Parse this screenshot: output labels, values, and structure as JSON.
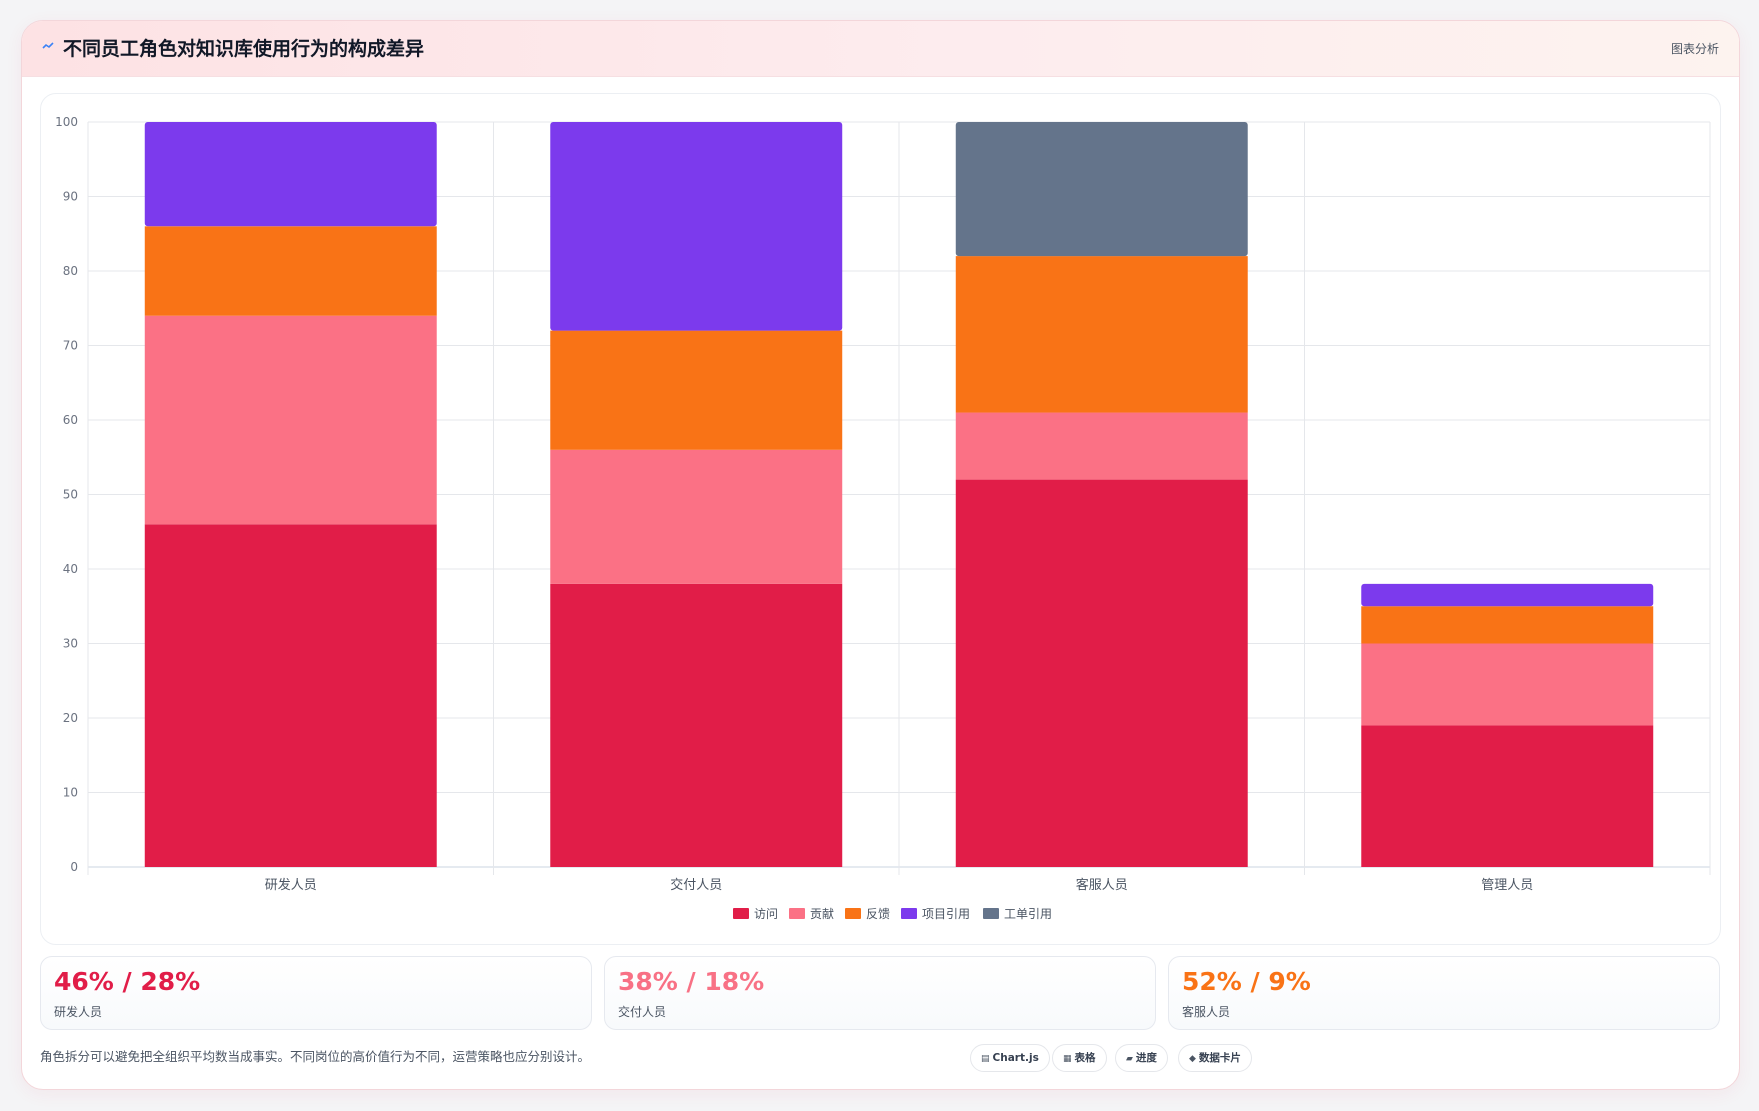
{
  "header": {
    "icon": "sparkline-icon",
    "title": "不同员工角色对知识库使用行为的构成差异",
    "tag": "图表分析"
  },
  "chart_data": {
    "type": "bar",
    "stacked": true,
    "categories": [
      "研发人员",
      "交付人员",
      "客服人员",
      "管理人员"
    ],
    "series": [
      {
        "name": "访问",
        "color": "#e11d48",
        "values": [
          46,
          38,
          52,
          19
        ]
      },
      {
        "name": "贡献",
        "color": "#fb7185",
        "values": [
          28,
          18,
          9,
          11
        ]
      },
      {
        "name": "反馈",
        "color": "#f97316",
        "values": [
          12,
          16,
          21,
          5
        ]
      },
      {
        "name": "项目引用",
        "color": "#7c3aed",
        "values": [
          14,
          28,
          0,
          3
        ]
      },
      {
        "name": "工单引用",
        "color": "#64748b",
        "values": [
          0,
          0,
          18,
          0
        ]
      }
    ],
    "ylim": [
      0,
      100
    ],
    "yticks": [
      0,
      10,
      20,
      30,
      40,
      50,
      60,
      70,
      80,
      90,
      100
    ],
    "grid": true,
    "legend": "bottom"
  },
  "stats": [
    {
      "value": "46% / 28%",
      "label": "研发人员",
      "color": "#e11d48"
    },
    {
      "value": "38% / 18%",
      "label": "交付人员",
      "color": "#f87185"
    },
    {
      "value": "52% / 9%",
      "label": "客服人员",
      "color": "#f97316"
    }
  ],
  "footer": {
    "note": "角色拆分可以避免把全组织平均数当成事实。不同岗位的高价值行为不同，运营策略也应分别设计。",
    "chips": [
      {
        "icon": "chart-icon",
        "label": "Chart.js"
      },
      {
        "icon": "table-icon",
        "label": "表格"
      },
      {
        "icon": "progress-icon",
        "label": "进度"
      },
      {
        "icon": "card-icon",
        "label": "数据卡片"
      }
    ]
  }
}
